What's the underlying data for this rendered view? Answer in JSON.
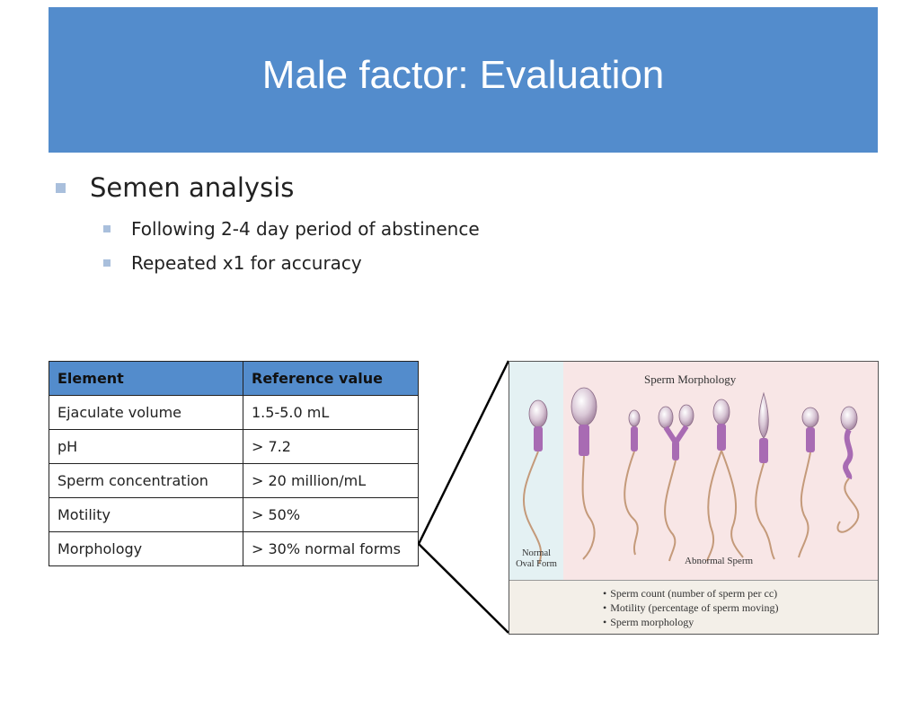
{
  "slide": {
    "title": "Male factor: Evaluation",
    "bullets": {
      "main": "Semen analysis",
      "subs": [
        "Following 2-4 day period of abstinence",
        "Repeated x1 for accuracy"
      ]
    }
  },
  "table": {
    "headers": [
      "Element",
      "Reference value"
    ],
    "rows": [
      [
        "Ejaculate volume",
        "1.5-5.0 mL"
      ],
      [
        "pH",
        "> 7.2"
      ],
      [
        "Sperm concentration",
        "> 20 million/mL"
      ],
      [
        "Motility",
        "> 50%"
      ],
      [
        "Morphology",
        "> 30% normal forms"
      ]
    ]
  },
  "figure": {
    "title": "Sperm Morphology",
    "normal_label": [
      "Normal",
      "Oval Form"
    ],
    "abnormal_label": "Abnormal Sperm",
    "list": [
      "Sperm count (number of sperm per cc)",
      "Motility (percentage of sperm moving)",
      "Sperm morphology"
    ]
  },
  "colors": {
    "title_bar": "#538ccc",
    "bullet_marker": "#a9bfdc",
    "table_header": "#538ccc"
  }
}
